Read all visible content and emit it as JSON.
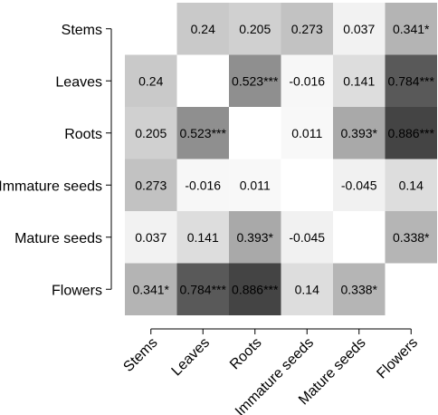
{
  "chart_data": {
    "type": "heatmap",
    "title": "",
    "xlabel": "",
    "ylabel": "",
    "rows": [
      "Stems",
      "Leaves",
      "Roots",
      "Immature seeds",
      "Mature seeds",
      "Flowers"
    ],
    "columns": [
      "Stems",
      "Leaves",
      "Roots",
      "Immature seeds",
      "Mature seeds",
      "Flowers"
    ],
    "values": [
      [
        null,
        0.24,
        0.205,
        0.273,
        0.037,
        0.341
      ],
      [
        0.24,
        null,
        0.523,
        -0.016,
        0.141,
        0.784
      ],
      [
        0.205,
        0.523,
        null,
        0.011,
        0.393,
        0.886
      ],
      [
        0.273,
        -0.016,
        0.011,
        null,
        -0.045,
        0.14
      ],
      [
        0.037,
        0.141,
        0.393,
        -0.045,
        null,
        0.338
      ],
      [
        0.341,
        0.784,
        0.886,
        0.14,
        0.338,
        null
      ]
    ],
    "labels": [
      [
        "",
        "0.24",
        "0.205",
        "0.273",
        "0.037",
        "0.341*"
      ],
      [
        "0.24",
        "",
        "0.523***",
        "-0.016",
        "0.141",
        "0.784***"
      ],
      [
        "0.205",
        "0.523***",
        "",
        "0.011",
        "0.393*",
        "0.886***"
      ],
      [
        "0.273",
        "-0.016",
        "0.011",
        "",
        "-0.045",
        "0.14"
      ],
      [
        "0.037",
        "0.141",
        "0.393*",
        "-0.045",
        "",
        "0.338*"
      ],
      [
        "0.341*",
        "0.784***",
        "0.886***",
        "0.14",
        "0.338*",
        ""
      ]
    ],
    "color_scale": "grayscale (higher |r| = darker)",
    "grid": false,
    "legend": "none"
  }
}
